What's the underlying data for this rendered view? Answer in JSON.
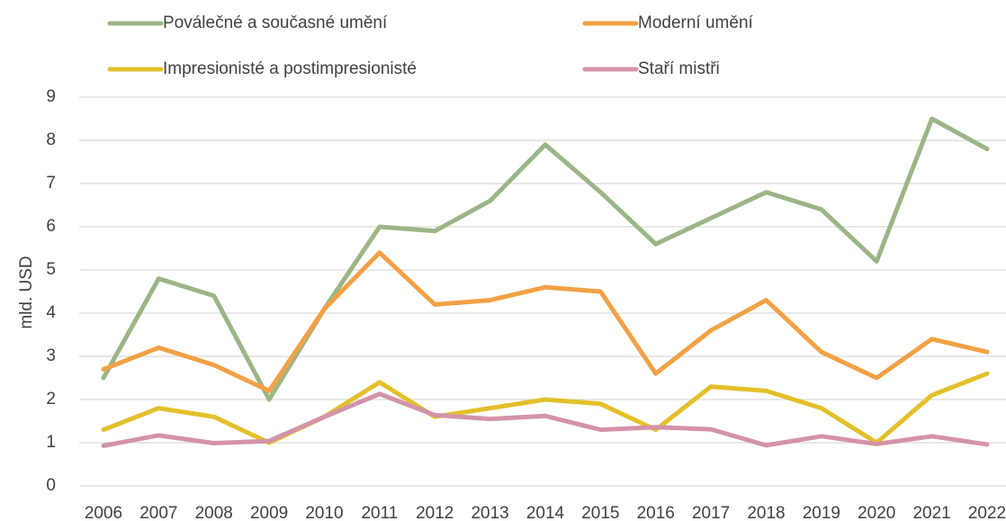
{
  "chart_data": {
    "type": "line",
    "y_label": "mld. USD",
    "categories": [
      "2006",
      "2007",
      "2008",
      "2009",
      "2010",
      "2011",
      "2012",
      "2013",
      "2014",
      "2015",
      "2016",
      "2017",
      "2018",
      "2019",
      "2020",
      "2021",
      "2022"
    ],
    "series": [
      {
        "name": "Poválečné a současné umění",
        "color": "#9cb587",
        "values": [
          2.5,
          4.8,
          4.4,
          2.0,
          4.1,
          6.0,
          5.9,
          6.6,
          7.9,
          6.8,
          5.6,
          6.2,
          6.8,
          6.4,
          5.2,
          8.5,
          7.8
        ]
      },
      {
        "name": "Moderní umění",
        "color": "#f2a145",
        "values": [
          2.7,
          3.2,
          2.8,
          2.2,
          4.1,
          5.4,
          4.2,
          4.3,
          4.6,
          4.5,
          2.6,
          3.6,
          4.3,
          3.1,
          2.5,
          3.4,
          3.1
        ]
      },
      {
        "name": "Impresionisté a postimpresionisté",
        "color": "#e3c02b",
        "values": [
          1.3,
          1.8,
          1.6,
          1.0,
          1.6,
          2.4,
          1.6,
          1.8,
          2.0,
          1.9,
          1.3,
          2.3,
          2.2,
          1.8,
          1.0,
          2.1,
          2.6
        ]
      },
      {
        "name": "Staří mistři",
        "color": "#d393a8",
        "values": [
          0.93,
          1.17,
          0.99,
          1.04,
          1.6,
          2.13,
          1.64,
          1.55,
          1.62,
          1.3,
          1.36,
          1.31,
          0.94,
          1.15,
          0.97,
          1.15,
          0.96
        ]
      }
    ],
    "ylim": [
      0,
      9
    ],
    "yticks": [
      0,
      1,
      2,
      3,
      4,
      5,
      6,
      7,
      8,
      9
    ],
    "grid": true,
    "legend": "top"
  }
}
